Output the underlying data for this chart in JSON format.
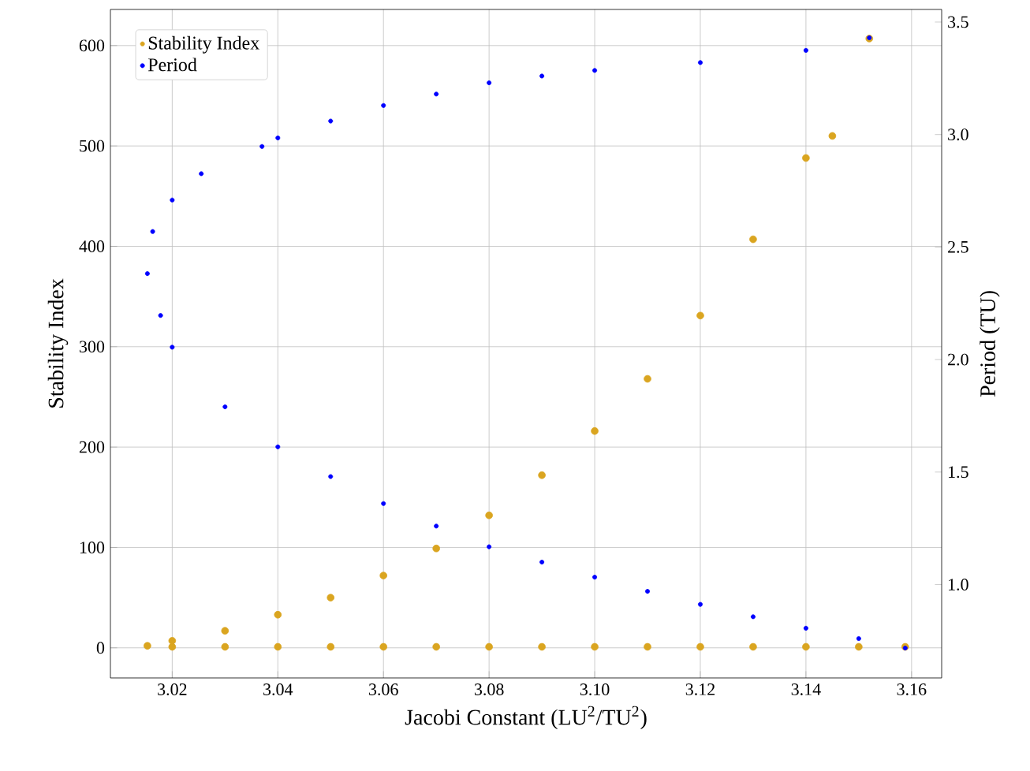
{
  "chart_data": {
    "type": "scatter",
    "xlabel": "Jacobi Constant (LU$^{2}$/TU$^{2}$)",
    "ylabel": "Stability Index",
    "y2label": "Period (TU)",
    "xlim": [
      3.0083,
      3.1657
    ],
    "ylim": [
      -30,
      636
    ],
    "y2lim": [
      0.585,
      3.556
    ],
    "xticks": [
      3.02,
      3.04,
      3.06,
      3.08,
      {
        "value": 3.1,
        "label": "3.10"
      },
      3.12,
      3.14,
      3.16
    ],
    "yticks": [
      0,
      100,
      200,
      300,
      400,
      500,
      600
    ],
    "y2ticks": [
      {
        "value": 1,
        "label": "1.0"
      },
      1.5,
      {
        "value": 2,
        "label": "2.0"
      },
      2.5,
      {
        "value": 3,
        "label": "3.0"
      },
      3.5
    ],
    "grid": true,
    "legend": "top left",
    "marker": "circle",
    "series": [
      {
        "name": "Stability Index",
        "color": "#daa520",
        "x": [
          3.1588,
          3.15,
          3.14,
          3.13,
          3.12,
          3.11,
          3.1,
          3.09,
          3.08,
          3.07,
          3.06,
          3.05,
          3.04,
          3.03,
          3.02,
          3.0153,
          3.02,
          3.03,
          3.04,
          3.05,
          3.06,
          3.07,
          3.08,
          3.09,
          3.1,
          3.11,
          3.12,
          3.13,
          3.14,
          3.145,
          3.152
        ],
        "values": [
          1,
          1,
          1,
          1,
          1,
          1,
          1,
          1,
          1,
          1,
          1,
          1,
          1,
          1,
          1,
          2,
          7,
          17,
          33,
          50,
          72,
          99,
          132,
          172,
          216,
          268,
          331,
          407,
          488,
          510,
          607
        ]
      },
      {
        "name": "Period",
        "color": "#0000ff",
        "axis": "y2",
        "x": [
          3.1588,
          3.15,
          3.14,
          3.13,
          3.12,
          3.11,
          3.1,
          3.09,
          3.08,
          3.07,
          3.06,
          3.05,
          3.04,
          3.03,
          3.02,
          3.0178,
          3.0153,
          3.0163,
          3.02,
          3.0255,
          3.037,
          3.04,
          3.05,
          3.06,
          3.07,
          3.08,
          3.09,
          3.1,
          3.12,
          3.14,
          3.152
        ],
        "values": [
          0.718,
          0.76,
          0.806,
          0.857,
          0.912,
          0.97,
          1.033,
          1.1,
          1.168,
          1.26,
          1.36,
          1.48,
          1.612,
          1.79,
          2.055,
          2.196,
          2.382,
          2.569,
          2.709,
          2.826,
          2.947,
          2.985,
          3.06,
          3.129,
          3.18,
          3.23,
          3.26,
          3.285,
          3.32,
          3.374,
          3.43
        ]
      }
    ]
  }
}
